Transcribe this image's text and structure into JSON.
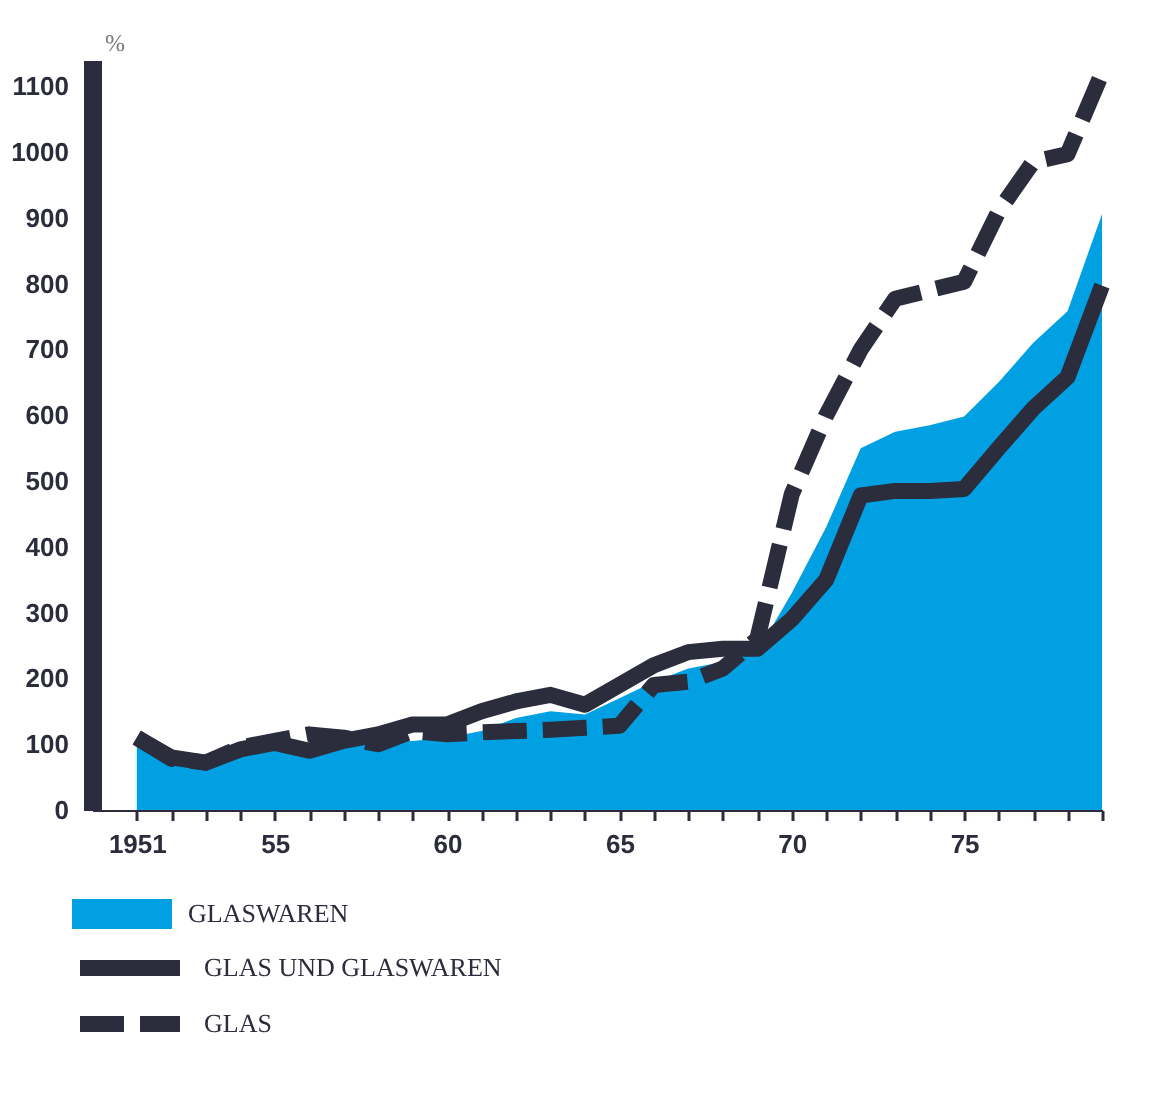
{
  "chart_data": {
    "type": "line",
    "ylabel": "%",
    "x": [
      1951,
      1952,
      1953,
      1954,
      1955,
      1956,
      1957,
      1958,
      1959,
      1960,
      1961,
      1962,
      1963,
      1964,
      1965,
      1966,
      1967,
      1968,
      1969,
      1970,
      1971,
      1972,
      1973,
      1974,
      1975,
      1976,
      1977,
      1978,
      1979
    ],
    "series": [
      {
        "name": "GLASWAREN",
        "type": "area",
        "color": "#00a0e3",
        "values": [
          100,
          68,
          65,
          85,
          95,
          85,
          95,
          105,
          105,
          110,
          120,
          140,
          150,
          145,
          170,
          195,
          215,
          225,
          240,
          330,
          430,
          550,
          575,
          585,
          598,
          650,
          710,
          758,
          906
        ]
      },
      {
        "name": "GLAS UND GLASWAREN",
        "type": "line",
        "line_style": "solid",
        "color": "#2b2d3c",
        "values": [
          110,
          80,
          72,
          92,
          102,
          90,
          105,
          115,
          130,
          130,
          150,
          165,
          175,
          160,
          190,
          220,
          240,
          245,
          245,
          290,
          350,
          478,
          485,
          485,
          488,
          550,
          610,
          658,
          797
        ]
      },
      {
        "name": "GLAS",
        "type": "line",
        "line_style": "dashed",
        "color": "#2b2d3c",
        "values": [
          110,
          78,
          72,
          95,
          105,
          115,
          110,
          100,
          120,
          115,
          118,
          120,
          122,
          125,
          128,
          190,
          195,
          215,
          260,
          480,
          600,
          700,
          777,
          790,
          803,
          910,
          985,
          997,
          1120
        ]
      }
    ],
    "xlim": [
      1949.7,
      1979
    ],
    "ylim": [
      0,
      1140
    ],
    "xticks": [
      {
        "value": 1951,
        "label": "1951"
      },
      {
        "value": 1952,
        "label": null
      },
      {
        "value": 1953,
        "label": null
      },
      {
        "value": 1954,
        "label": null
      },
      {
        "value": 1955,
        "label": "55"
      },
      {
        "value": 1956,
        "label": null
      },
      {
        "value": 1957,
        "label": null
      },
      {
        "value": 1958,
        "label": null
      },
      {
        "value": 1959,
        "label": null
      },
      {
        "value": 1960,
        "label": "60"
      },
      {
        "value": 1961,
        "label": null
      },
      {
        "value": 1962,
        "label": null
      },
      {
        "value": 1963,
        "label": null
      },
      {
        "value": 1964,
        "label": null
      },
      {
        "value": 1965,
        "label": "65"
      },
      {
        "value": 1966,
        "label": null
      },
      {
        "value": 1967,
        "label": null
      },
      {
        "value": 1968,
        "label": null
      },
      {
        "value": 1969,
        "label": null
      },
      {
        "value": 1970,
        "label": "70"
      },
      {
        "value": 1971,
        "label": null
      },
      {
        "value": 1972,
        "label": null
      },
      {
        "value": 1973,
        "label": null
      },
      {
        "value": 1974,
        "label": null
      },
      {
        "value": 1975,
        "label": "75"
      },
      {
        "value": 1976,
        "label": null
      },
      {
        "value": 1977,
        "label": null
      },
      {
        "value": 1978,
        "label": null
      },
      {
        "value": 1979,
        "label": null
      }
    ],
    "yticks": [
      0,
      100,
      200,
      300,
      400,
      500,
      600,
      700,
      800,
      900,
      {
        "value": 1000,
        "label": "1000"
      },
      {
        "value": 1100,
        "label": "1100"
      }
    ],
    "grid": false,
    "legend": "bottom"
  }
}
